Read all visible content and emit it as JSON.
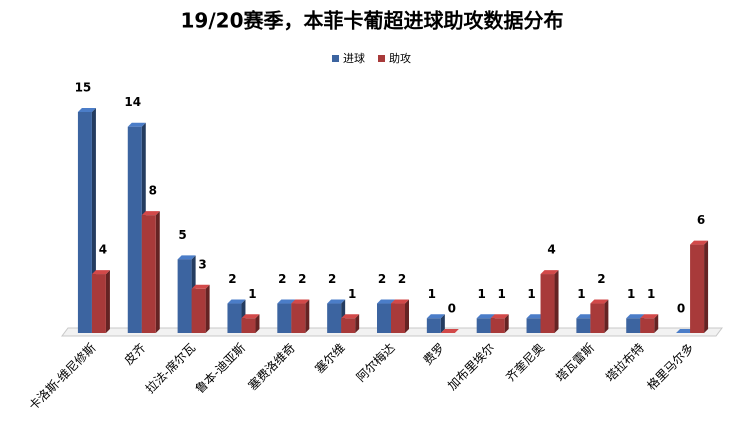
{
  "chart_data": {
    "type": "bar3d",
    "title": "19/20赛季，本菲卡葡超进球助攻数据分布",
    "categories": [
      "卡洛斯-维尼修斯",
      "皮齐",
      "拉法-席尔瓦",
      "鲁本-迪亚斯",
      "塞费洛维奇",
      "塞尔维",
      "阿尔梅达",
      "费罗",
      "加布里埃尔",
      "齐奎尼奥",
      "塔瓦雷斯",
      "塔拉布特",
      "格里马尔多"
    ],
    "series": [
      {
        "name": "进球",
        "color": "#3c64a0",
        "values": [
          15,
          14,
          5,
          2,
          2,
          2,
          2,
          1,
          1,
          1,
          1,
          1,
          0
        ]
      },
      {
        "name": "助攻",
        "color": "#a83a3a",
        "values": [
          4,
          8,
          3,
          1,
          2,
          1,
          2,
          0,
          1,
          4,
          2,
          1,
          6
        ]
      }
    ],
    "legend": "top"
  }
}
